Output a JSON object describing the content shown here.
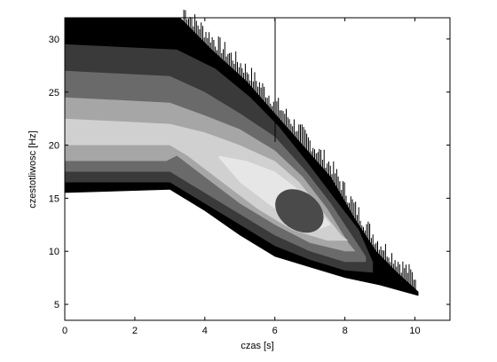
{
  "chart_data": {
    "type": "heatmap",
    "title": "",
    "xlabel": "czas [s]",
    "ylabel": "czestotliwosc [Hz]",
    "xlim": [
      0,
      11
    ],
    "ylim": [
      3.5,
      32
    ],
    "xticks": [
      0,
      2,
      4,
      6,
      8,
      10
    ],
    "yticks": [
      5,
      10,
      15,
      20,
      25,
      30
    ],
    "grid": false,
    "colormap": "grayscale filled contour",
    "levels": [
      {
        "name": "outer",
        "color": "#000000"
      },
      {
        "name": "level-2",
        "color": "#3a3a3a"
      },
      {
        "name": "level-3",
        "color": "#6a6a6a"
      },
      {
        "name": "level-4",
        "color": "#a6a6a6"
      },
      {
        "name": "level-5",
        "color": "#d0d0d0"
      },
      {
        "name": "level-6",
        "color": "#e6e6e6"
      },
      {
        "name": "peak",
        "color": "#4a4a4a"
      }
    ],
    "regions": [
      {
        "level": "outer",
        "upper": [
          [
            0,
            32
          ],
          [
            3.3,
            32
          ],
          [
            4.2,
            29
          ],
          [
            5.2,
            26
          ],
          [
            6.0,
            23
          ],
          [
            6.8,
            20
          ],
          [
            7.6,
            17
          ],
          [
            8.3,
            13
          ],
          [
            8.9,
            10
          ],
          [
            9.5,
            8
          ],
          [
            10.1,
            6.2
          ],
          [
            10.1,
            5.8
          ]
        ],
        "lower": [
          [
            0,
            15.5
          ],
          [
            3.0,
            15.8
          ],
          [
            4.0,
            13.8
          ],
          [
            5.0,
            11.5
          ],
          [
            6.0,
            9.5
          ],
          [
            7.0,
            8.5
          ],
          [
            8.0,
            7.5
          ],
          [
            9.0,
            6.8
          ],
          [
            10.1,
            5.8
          ]
        ]
      },
      {
        "level": "level-2",
        "upper": [
          [
            0,
            29.5
          ],
          [
            3.2,
            29
          ],
          [
            4.3,
            27.2
          ],
          [
            5.3,
            24.5
          ],
          [
            6.1,
            21.8
          ],
          [
            6.9,
            18.5
          ],
          [
            7.7,
            15
          ],
          [
            8.4,
            12
          ],
          [
            8.8,
            9
          ]
        ],
        "lower": [
          [
            0,
            16.5
          ],
          [
            3.0,
            16.5
          ],
          [
            4.0,
            14.5
          ],
          [
            5.0,
            12.5
          ],
          [
            6.0,
            10.5
          ],
          [
            7.0,
            9.2
          ],
          [
            8.0,
            8.2
          ],
          [
            8.8,
            8.0
          ]
        ]
      },
      {
        "level": "level-3",
        "upper": [
          [
            0,
            27
          ],
          [
            3.0,
            26.5
          ],
          [
            4.0,
            25
          ],
          [
            5.0,
            23
          ],
          [
            6.0,
            20.8
          ],
          [
            6.9,
            17.5
          ],
          [
            7.6,
            14.5
          ],
          [
            8.3,
            11
          ],
          [
            8.6,
            9.5
          ]
        ],
        "lower": [
          [
            0,
            17.5
          ],
          [
            3.0,
            17.5
          ],
          [
            4.0,
            15.5
          ],
          [
            5.0,
            13.5
          ],
          [
            6.0,
            11.5
          ],
          [
            7.0,
            10
          ],
          [
            8.0,
            9
          ],
          [
            8.6,
            9
          ]
        ]
      },
      {
        "level": "level-4",
        "upper": [
          [
            0,
            24.5
          ],
          [
            3.0,
            24
          ],
          [
            4.0,
            22.8
          ],
          [
            5.0,
            21.5
          ],
          [
            6.0,
            19.5
          ],
          [
            6.8,
            17
          ],
          [
            7.5,
            14
          ],
          [
            8.1,
            10.8
          ],
          [
            8.3,
            10
          ]
        ],
        "lower": [
          [
            0,
            18.5
          ],
          [
            2.9,
            18.5
          ],
          [
            3.2,
            19
          ],
          [
            4.0,
            17
          ],
          [
            5.0,
            14.5
          ],
          [
            6.0,
            12.5
          ],
          [
            7.0,
            10.8
          ],
          [
            8.0,
            10
          ],
          [
            8.3,
            10
          ]
        ]
      },
      {
        "level": "level-5",
        "upper": [
          [
            0,
            22.5
          ],
          [
            3.0,
            22
          ],
          [
            4.0,
            21.2
          ],
          [
            5.0,
            20
          ],
          [
            6.0,
            18.5
          ],
          [
            6.7,
            16.5
          ],
          [
            7.3,
            14
          ],
          [
            7.9,
            11.5
          ],
          [
            8.1,
            11
          ]
        ],
        "lower": [
          [
            0,
            20
          ],
          [
            3.0,
            20
          ],
          [
            3.5,
            19
          ],
          [
            4.5,
            16.5
          ],
          [
            5.5,
            14
          ],
          [
            6.5,
            12
          ],
          [
            7.5,
            11
          ],
          [
            8.1,
            11
          ]
        ]
      },
      {
        "level": "level-6",
        "upper": [
          [
            4.4,
            19
          ],
          [
            5.2,
            18.5
          ],
          [
            6.0,
            17.5
          ],
          [
            6.6,
            16
          ],
          [
            7.2,
            14
          ],
          [
            7.6,
            12.5
          ]
        ],
        "lower": [
          [
            4.4,
            18.8
          ],
          [
            5.0,
            16.5
          ],
          [
            5.8,
            14.5
          ],
          [
            6.5,
            12.8
          ],
          [
            7.2,
            12
          ],
          [
            7.6,
            12.5
          ]
        ]
      }
    ],
    "peak_center": [
      6.7,
      13.8
    ],
    "peak_radius": [
      0.75,
      1.8
    ]
  }
}
